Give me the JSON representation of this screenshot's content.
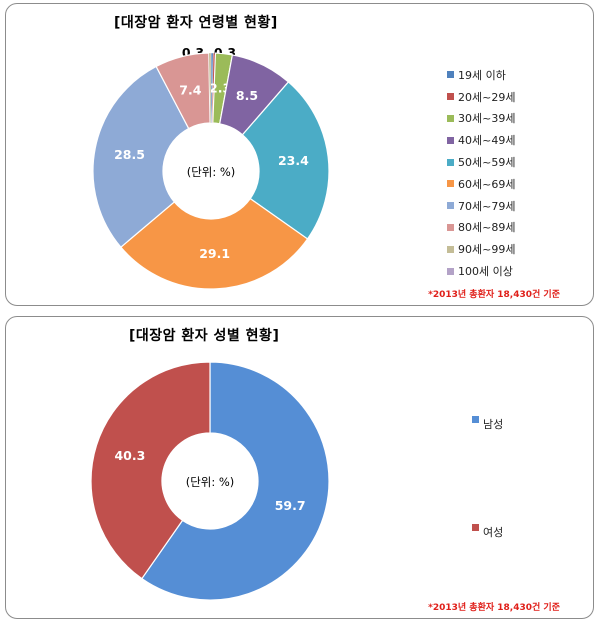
{
  "chart_data": [
    {
      "type": "pie",
      "title": "[대장암 환자 연령별 현황]",
      "unit_note": "(단위: %)",
      "footnote": "*2013년 총환자 18,430건 기준",
      "legend_position": "right",
      "categories": [
        "19세 이하",
        "20세~29세",
        "30세~39세",
        "40세~49세",
        "50세~59세",
        "60세~69세",
        "70세~79세",
        "80세~89세",
        "90세~99세",
        "100세 이상"
      ],
      "values": [
        0.3,
        0.3,
        2.3,
        8.5,
        23.4,
        29.1,
        28.5,
        7.4,
        0.3,
        0.0
      ],
      "labels": [
        "0.3",
        "0.3",
        "2.3",
        "8.5",
        "23.4",
        "29.1",
        "28.5",
        "7.4",
        "",
        ""
      ],
      "colors": [
        "#4f81bd",
        "#c0504d",
        "#9bbb59",
        "#8064a2",
        "#4bacc6",
        "#f79646",
        "#8eaad6",
        "#d99694",
        "#c4bd97",
        "#b3a2c7"
      ]
    },
    {
      "type": "pie",
      "title": "[대장암 환자 성별 현황]",
      "unit_note": "(단위: %)",
      "footnote": "*2013년 총환자 18,430건 기준",
      "legend_position": "right",
      "categories": [
        "남성",
        "여성"
      ],
      "values": [
        59.7,
        40.3
      ],
      "labels": [
        "59.7",
        "40.3"
      ],
      "colors": [
        "#558ed5",
        "#c0504d"
      ]
    }
  ]
}
